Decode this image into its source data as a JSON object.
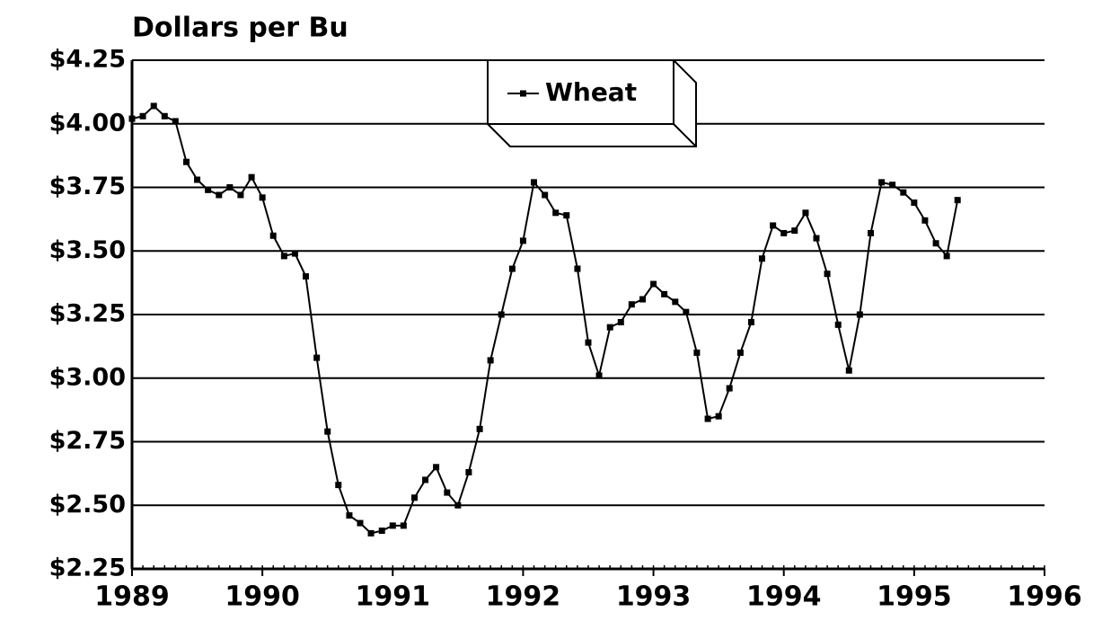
{
  "chart_data": {
    "type": "line",
    "title": "Dollars per Bu",
    "x": [
      1989,
      1989.083,
      1989.167,
      1989.25,
      1989.333,
      1989.417,
      1989.5,
      1989.583,
      1989.667,
      1989.75,
      1989.833,
      1989.917,
      1990,
      1990.083,
      1990.167,
      1990.25,
      1990.333,
      1990.417,
      1990.5,
      1990.583,
      1990.667,
      1990.75,
      1990.833,
      1990.917,
      1991,
      1991.083,
      1991.167,
      1991.25,
      1991.333,
      1991.417,
      1991.5,
      1991.583,
      1991.667,
      1991.75,
      1991.833,
      1991.917,
      1992,
      1992.083,
      1992.167,
      1992.25,
      1992.333,
      1992.417,
      1992.5,
      1992.583,
      1992.667,
      1992.75,
      1992.833,
      1992.917,
      1993,
      1993.083,
      1993.167,
      1993.25,
      1993.333,
      1993.417,
      1993.5,
      1993.583,
      1993.667,
      1993.75,
      1993.833,
      1993.917,
      1994,
      1994.083,
      1994.167,
      1994.25,
      1994.333,
      1994.417,
      1994.5,
      1994.583,
      1994.667,
      1994.75,
      1994.833,
      1994.917,
      1995,
      1995.083,
      1995.167,
      1995.25,
      1995.333
    ],
    "series": [
      {
        "name": "Wheat",
        "color": "#000000",
        "values": [
          4.02,
          4.03,
          4.07,
          4.03,
          4.01,
          3.85,
          3.78,
          3.74,
          3.72,
          3.75,
          3.72,
          3.79,
          3.71,
          3.56,
          3.48,
          3.49,
          3.4,
          3.08,
          2.79,
          2.58,
          2.46,
          2.43,
          2.39,
          2.4,
          2.42,
          2.42,
          2.53,
          2.6,
          2.65,
          2.55,
          2.5,
          2.63,
          2.8,
          3.07,
          3.25,
          3.43,
          3.54,
          3.77,
          3.72,
          3.65,
          3.64,
          3.43,
          3.14,
          3.01,
          3.2,
          3.22,
          3.29,
          3.31,
          3.37,
          3.33,
          3.3,
          3.26,
          3.1,
          2.84,
          2.85,
          2.96,
          3.1,
          3.22,
          3.47,
          3.6,
          3.57,
          3.58,
          3.65,
          3.55,
          3.41,
          3.21,
          3.03,
          3.25,
          3.57,
          3.77,
          3.76,
          3.73,
          3.69,
          3.62,
          3.53,
          3.48,
          3.7
        ]
      }
    ],
    "xlim": [
      1989,
      1996
    ],
    "xticks": [
      1989,
      1990,
      1991,
      1992,
      1993,
      1994,
      1995,
      1996
    ],
    "ylim": [
      2.25,
      4.25
    ],
    "yticks": [
      {
        "value": 2.25,
        "label": "$2.25"
      },
      {
        "value": 2.5,
        "label": "$2.50"
      },
      {
        "value": 2.75,
        "label": "$2.75"
      },
      {
        "value": 3,
        "label": "$3.00"
      },
      {
        "value": 3.25,
        "label": "$3.25"
      },
      {
        "value": 3.5,
        "label": "$3.50"
      },
      {
        "value": 3.75,
        "label": "$3.75"
      },
      {
        "value": 4,
        "label": "$4.00"
      },
      {
        "value": 4.25,
        "label": "$4.25"
      }
    ],
    "grid": true,
    "legend": "top"
  }
}
